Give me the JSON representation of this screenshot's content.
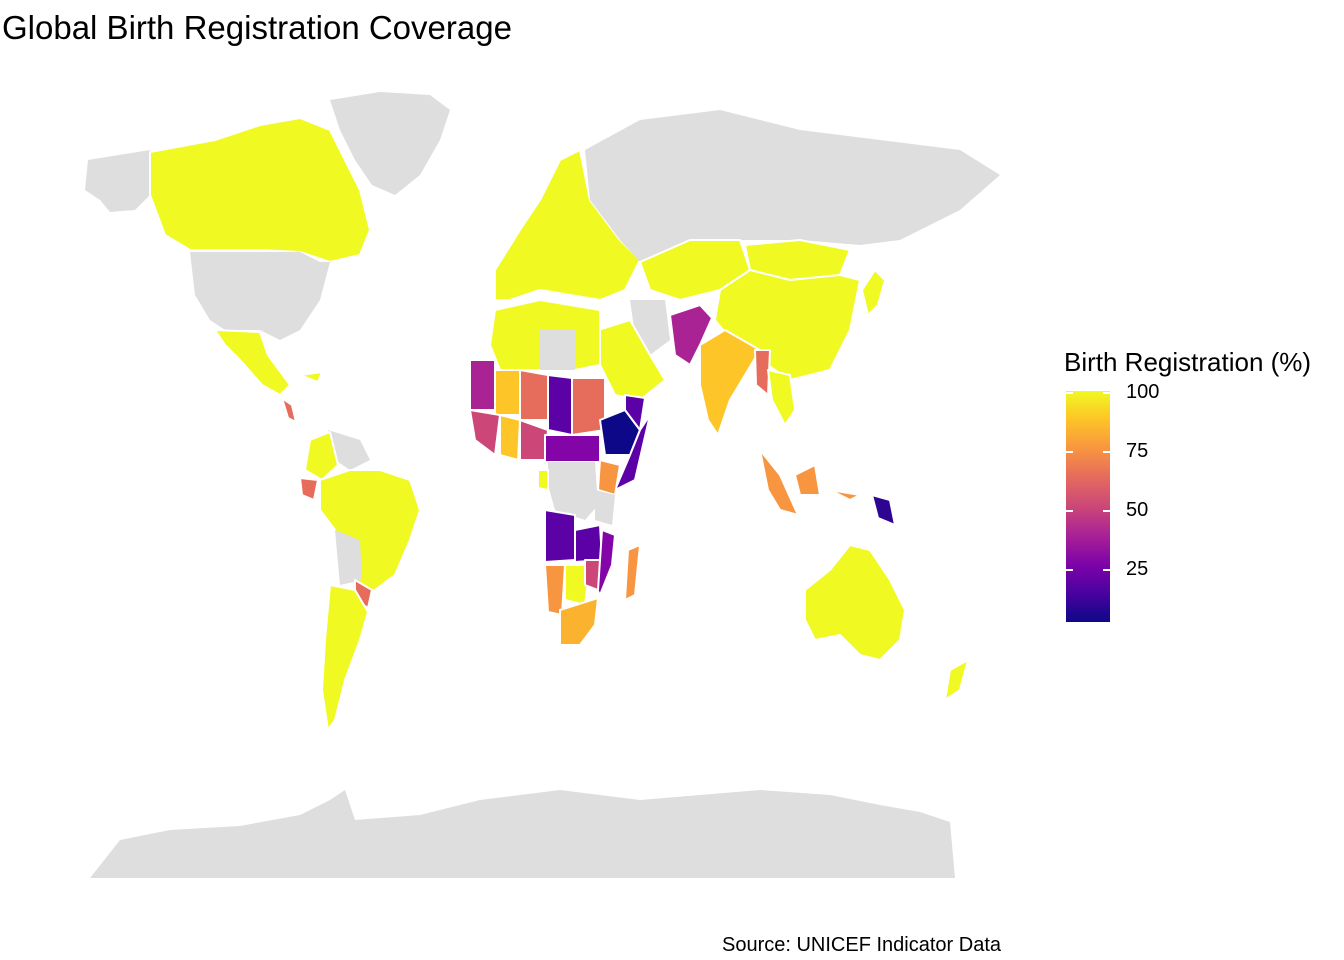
{
  "title": "Global Birth Registration Coverage",
  "caption": "Source: UNICEF Indicator Data",
  "legend": {
    "title": "Birth Registration (%)",
    "ticks": [
      "100",
      "75",
      "50",
      "25"
    ],
    "tick_values": [
      100,
      75,
      50,
      25
    ],
    "range": [
      2,
      100
    ],
    "palette": "plasma"
  },
  "colors": {
    "no_data": "#dedede",
    "border": "#ffffff",
    "c100": "#f0f921",
    "c90": "#fdc527",
    "c80": "#f89540",
    "c70": "#e66c5c",
    "c60": "#cc4778",
    "c50": "#aa2395",
    "c40": "#8405a7",
    "c25": "#5c01a6",
    "c5": "#0d0887"
  }
}
